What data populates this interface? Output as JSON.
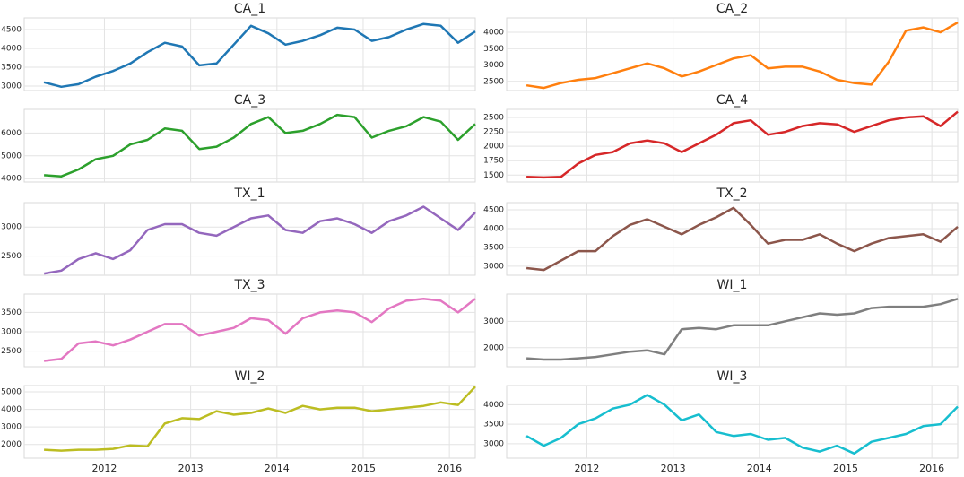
{
  "chart_data": [
    {
      "type": "line",
      "title": "CA_1",
      "color": "#1f77b4",
      "x": [
        2011.3,
        2011.5,
        2011.7,
        2011.9,
        2012.1,
        2012.3,
        2012.5,
        2012.7,
        2012.9,
        2013.1,
        2013.3,
        2013.5,
        2013.7,
        2013.9,
        2014.1,
        2014.3,
        2014.5,
        2014.7,
        2014.9,
        2015.1,
        2015.3,
        2015.5,
        2015.7,
        2015.9,
        2016.1,
        2016.3
      ],
      "values": [
        3100,
        2980,
        3050,
        3250,
        3400,
        3600,
        3900,
        4150,
        4050,
        3550,
        3600,
        4100,
        4600,
        4400,
        4100,
        4200,
        4350,
        4550,
        4500,
        4200,
        4300,
        4500,
        4650,
        4600,
        4150,
        4450
      ],
      "xlim": [
        2011.07,
        2016.3
      ],
      "xticks": [
        2012,
        2013,
        2014,
        2015,
        2016
      ],
      "ylim": [
        2880,
        4810
      ],
      "yticks": [
        3000,
        3500,
        4000,
        4500
      ],
      "grid": true
    },
    {
      "type": "line",
      "title": "CA_2",
      "color": "#ff7f0e",
      "x": [
        2011.3,
        2011.5,
        2011.7,
        2011.9,
        2012.1,
        2012.3,
        2012.5,
        2012.7,
        2012.9,
        2013.1,
        2013.3,
        2013.5,
        2013.7,
        2013.9,
        2014.1,
        2014.3,
        2014.5,
        2014.7,
        2014.9,
        2015.1,
        2015.3,
        2015.5,
        2015.7,
        2015.9,
        2016.1,
        2016.3
      ],
      "values": [
        2380,
        2300,
        2450,
        2550,
        2600,
        2750,
        2900,
        3050,
        2900,
        2650,
        2800,
        3000,
        3200,
        3300,
        2900,
        2950,
        2950,
        2800,
        2550,
        2450,
        2400,
        3100,
        4050,
        4150,
        4000,
        4300
      ],
      "xlim": [
        2011.07,
        2016.3
      ],
      "xticks": [
        2012,
        2013,
        2014,
        2015,
        2016
      ],
      "ylim": [
        2220,
        4440
      ],
      "yticks": [
        2500,
        3000,
        3500,
        4000
      ],
      "grid": true
    },
    {
      "type": "line",
      "title": "CA_3",
      "color": "#2ca02c",
      "x": [
        2011.3,
        2011.5,
        2011.7,
        2011.9,
        2012.1,
        2012.3,
        2012.5,
        2012.7,
        2012.9,
        2013.1,
        2013.3,
        2013.5,
        2013.7,
        2013.9,
        2014.1,
        2014.3,
        2014.5,
        2014.7,
        2014.9,
        2015.1,
        2015.3,
        2015.5,
        2015.7,
        2015.9,
        2016.1,
        2016.3
      ],
      "values": [
        4150,
        4100,
        4400,
        4850,
        5000,
        5500,
        5700,
        6200,
        6100,
        5300,
        5400,
        5800,
        6400,
        6700,
        6000,
        6100,
        6400,
        6800,
        6700,
        5800,
        6100,
        6300,
        6700,
        6500,
        5700,
        6400
      ],
      "xlim": [
        2011.07,
        2016.3
      ],
      "xticks": [
        2012,
        2013,
        2014,
        2015,
        2016
      ],
      "ylim": [
        3850,
        7040
      ],
      "yticks": [
        4000,
        5000,
        6000
      ],
      "grid": true
    },
    {
      "type": "line",
      "title": "CA_4",
      "color": "#d62728",
      "x": [
        2011.3,
        2011.5,
        2011.7,
        2011.9,
        2012.1,
        2012.3,
        2012.5,
        2012.7,
        2012.9,
        2013.1,
        2013.3,
        2013.5,
        2013.7,
        2013.9,
        2014.1,
        2014.3,
        2014.5,
        2014.7,
        2014.9,
        2015.1,
        2015.3,
        2015.5,
        2015.7,
        2015.9,
        2016.1,
        2016.3
      ],
      "values": [
        1470,
        1460,
        1470,
        1700,
        1850,
        1900,
        2050,
        2100,
        2050,
        1900,
        2050,
        2200,
        2400,
        2450,
        2200,
        2250,
        2350,
        2400,
        2380,
        2250,
        2350,
        2450,
        2500,
        2520,
        2350,
        2600
      ],
      "xlim": [
        2011.07,
        2016.3
      ],
      "xticks": [
        2012,
        2013,
        2014,
        2015,
        2016
      ],
      "ylim": [
        1380,
        2640
      ],
      "yticks": [
        1500,
        1750,
        2000,
        2250,
        2500
      ],
      "grid": true
    },
    {
      "type": "line",
      "title": "TX_1",
      "color": "#9467bd",
      "x": [
        2011.3,
        2011.5,
        2011.7,
        2011.9,
        2012.1,
        2012.3,
        2012.5,
        2012.7,
        2012.9,
        2013.1,
        2013.3,
        2013.5,
        2013.7,
        2013.9,
        2014.1,
        2014.3,
        2014.5,
        2014.7,
        2014.9,
        2015.1,
        2015.3,
        2015.5,
        2015.7,
        2015.9,
        2016.1,
        2016.3
      ],
      "values": [
        2200,
        2250,
        2450,
        2550,
        2450,
        2600,
        2950,
        3050,
        3050,
        2900,
        2850,
        3000,
        3150,
        3200,
        2950,
        2900,
        3100,
        3150,
        3050,
        2900,
        3100,
        3200,
        3350,
        3150,
        2950,
        3250
      ],
      "xlim": [
        2011.07,
        2016.3
      ],
      "xticks": [
        2012,
        2013,
        2014,
        2015,
        2016
      ],
      "ylim": [
        2170,
        3420
      ],
      "yticks": [
        2500,
        3000
      ],
      "grid": true
    },
    {
      "type": "line",
      "title": "TX_2",
      "color": "#8c564b",
      "x": [
        2011.3,
        2011.5,
        2011.7,
        2011.9,
        2012.1,
        2012.3,
        2012.5,
        2012.7,
        2012.9,
        2013.1,
        2013.3,
        2013.5,
        2013.7,
        2013.9,
        2014.1,
        2014.3,
        2014.5,
        2014.7,
        2014.9,
        2015.1,
        2015.3,
        2015.5,
        2015.7,
        2015.9,
        2016.1,
        2016.3
      ],
      "values": [
        2950,
        2900,
        3150,
        3400,
        3400,
        3800,
        4100,
        4250,
        4050,
        3850,
        4100,
        4300,
        4550,
        4100,
        3600,
        3700,
        3700,
        3850,
        3600,
        3400,
        3600,
        3750,
        3800,
        3850,
        3650,
        4050
      ],
      "xlim": [
        2011.07,
        2016.3
      ],
      "xticks": [
        2012,
        2013,
        2014,
        2015,
        2016
      ],
      "ylim": [
        2760,
        4690
      ],
      "yticks": [
        3000,
        3500,
        4000,
        4500
      ],
      "grid": true
    },
    {
      "type": "line",
      "title": "TX_3",
      "color": "#e377c2",
      "x": [
        2011.3,
        2011.5,
        2011.7,
        2011.9,
        2012.1,
        2012.3,
        2012.5,
        2012.7,
        2012.9,
        2013.1,
        2013.3,
        2013.5,
        2013.7,
        2013.9,
        2014.1,
        2014.3,
        2014.5,
        2014.7,
        2014.9,
        2015.1,
        2015.3,
        2015.5,
        2015.7,
        2015.9,
        2016.1,
        2016.3
      ],
      "values": [
        2250,
        2300,
        2700,
        2750,
        2650,
        2800,
        3000,
        3200,
        3200,
        2900,
        3000,
        3100,
        3350,
        3300,
        2950,
        3350,
        3500,
        3550,
        3500,
        3250,
        3600,
        3800,
        3850,
        3800,
        3500,
        3850
      ],
      "xlim": [
        2011.07,
        2016.3
      ],
      "xticks": [
        2012,
        2013,
        2014,
        2015,
        2016
      ],
      "ylim": [
        2100,
        3970
      ],
      "yticks": [
        2500,
        3000,
        3500
      ],
      "grid": true
    },
    {
      "type": "line",
      "title": "WI_1",
      "color": "#7f7f7f",
      "x": [
        2011.3,
        2011.5,
        2011.7,
        2011.9,
        2012.1,
        2012.3,
        2012.5,
        2012.7,
        2012.9,
        2013.1,
        2013.3,
        2013.5,
        2013.7,
        2013.9,
        2014.1,
        2014.3,
        2014.5,
        2014.7,
        2014.9,
        2015.1,
        2015.3,
        2015.5,
        2015.7,
        2015.9,
        2016.1,
        2016.3
      ],
      "values": [
        1600,
        1550,
        1550,
        1600,
        1650,
        1750,
        1850,
        1900,
        1750,
        2700,
        2750,
        2700,
        2850,
        2850,
        2850,
        3000,
        3150,
        3300,
        3250,
        3300,
        3500,
        3550,
        3550,
        3550,
        3650,
        3850
      ],
      "xlim": [
        2011.07,
        2016.3
      ],
      "xticks": [
        2012,
        2013,
        2014,
        2015,
        2016
      ],
      "ylim": [
        1280,
        4030
      ],
      "yticks": [
        2000,
        3000
      ],
      "grid": true
    },
    {
      "type": "line",
      "title": "WI_2",
      "color": "#bcbd22",
      "x": [
        2011.3,
        2011.5,
        2011.7,
        2011.9,
        2012.1,
        2012.3,
        2012.5,
        2012.7,
        2012.9,
        2013.1,
        2013.3,
        2013.5,
        2013.7,
        2013.9,
        2014.1,
        2014.3,
        2014.5,
        2014.7,
        2014.9,
        2015.1,
        2015.3,
        2015.5,
        2015.7,
        2015.9,
        2016.1,
        2016.3
      ],
      "values": [
        1700,
        1650,
        1700,
        1700,
        1750,
        1950,
        1900,
        3200,
        3500,
        3450,
        3900,
        3700,
        3800,
        4050,
        3800,
        4200,
        4000,
        4100,
        4100,
        3900,
        4000,
        4100,
        4200,
        4400,
        4250,
        5300
      ],
      "xlim": [
        2011.07,
        2016.3
      ],
      "xticks": [
        2012,
        2013,
        2014,
        2015,
        2016
      ],
      "ylim": [
        1220,
        5360
      ],
      "yticks": [
        2000,
        3000,
        4000,
        5000
      ],
      "grid": true
    },
    {
      "type": "line",
      "title": "WI_3",
      "color": "#17becf",
      "x": [
        2011.3,
        2011.5,
        2011.7,
        2011.9,
        2012.1,
        2012.3,
        2012.5,
        2012.7,
        2012.9,
        2013.1,
        2013.3,
        2013.5,
        2013.7,
        2013.9,
        2014.1,
        2014.3,
        2014.5,
        2014.7,
        2014.9,
        2015.1,
        2015.3,
        2015.5,
        2015.7,
        2015.9,
        2016.1,
        2016.3
      ],
      "values": [
        3200,
        2950,
        3150,
        3500,
        3650,
        3900,
        4000,
        4250,
        4000,
        3600,
        3750,
        3300,
        3200,
        3250,
        3100,
        3150,
        2900,
        2800,
        2950,
        2750,
        3050,
        3150,
        3250,
        3450,
        3500,
        3950
      ],
      "xlim": [
        2011.07,
        2016.3
      ],
      "xticks": [
        2012,
        2013,
        2014,
        2015,
        2016
      ],
      "ylim": [
        2630,
        4490
      ],
      "yticks": [
        3000,
        3500,
        4000
      ],
      "grid": true
    }
  ]
}
